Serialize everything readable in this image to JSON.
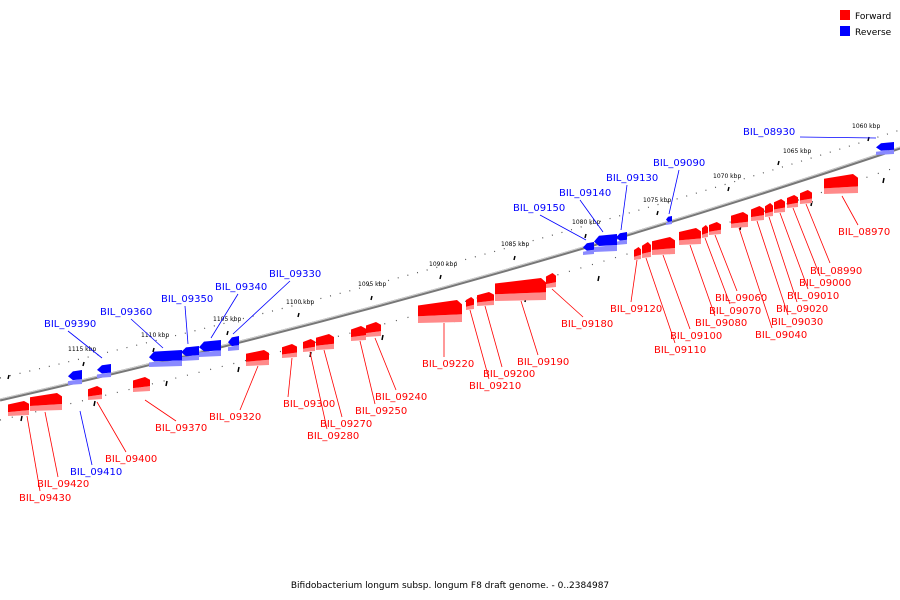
{
  "legend": {
    "forward_label": "Forward",
    "reverse_label": "Reverse",
    "forward_color": "#ff0000",
    "reverse_color": "#0000ff"
  },
  "caption": "Bifidobacterium longum subsp. longum F8 draft genome. - 0..2384987",
  "kbp_ticks": [
    "1060 kbp",
    "1065 kbp",
    "1070 kbp",
    "1075 kbp",
    "1080 kbp",
    "1085 kbp",
    "1090 kbp",
    "1095 kbp",
    "1100 kbp",
    "1105 kbp",
    "1110 kbp",
    "1115 kbp"
  ],
  "genes": [
    {
      "id": "BIL_08930",
      "strand": "reverse"
    },
    {
      "id": "BIL_08970",
      "strand": "forward"
    },
    {
      "id": "BIL_08990",
      "strand": "forward"
    },
    {
      "id": "BIL_09000",
      "strand": "forward"
    },
    {
      "id": "BIL_09010",
      "strand": "forward"
    },
    {
      "id": "BIL_09020",
      "strand": "forward"
    },
    {
      "id": "BIL_09030",
      "strand": "forward"
    },
    {
      "id": "BIL_09040",
      "strand": "forward"
    },
    {
      "id": "BIL_09060",
      "strand": "forward"
    },
    {
      "id": "BIL_09070",
      "strand": "forward"
    },
    {
      "id": "BIL_09080",
      "strand": "forward"
    },
    {
      "id": "BIL_09090",
      "strand": "reverse"
    },
    {
      "id": "BIL_09100",
      "strand": "forward"
    },
    {
      "id": "BIL_09110",
      "strand": "forward"
    },
    {
      "id": "BIL_09120",
      "strand": "forward"
    },
    {
      "id": "BIL_09130",
      "strand": "reverse"
    },
    {
      "id": "BIL_09140",
      "strand": "reverse"
    },
    {
      "id": "BIL_09150",
      "strand": "reverse"
    },
    {
      "id": "BIL_09180",
      "strand": "forward"
    },
    {
      "id": "BIL_09190",
      "strand": "forward"
    },
    {
      "id": "BIL_09200",
      "strand": "forward"
    },
    {
      "id": "BIL_09210",
      "strand": "forward"
    },
    {
      "id": "BIL_09220",
      "strand": "forward"
    },
    {
      "id": "BIL_09240",
      "strand": "forward"
    },
    {
      "id": "BIL_09250",
      "strand": "forward"
    },
    {
      "id": "BIL_09270",
      "strand": "forward"
    },
    {
      "id": "BIL_09280",
      "strand": "forward"
    },
    {
      "id": "BIL_09300",
      "strand": "forward"
    },
    {
      "id": "BIL_09320",
      "strand": "forward"
    },
    {
      "id": "BIL_09330",
      "strand": "reverse"
    },
    {
      "id": "BIL_09340",
      "strand": "reverse"
    },
    {
      "id": "BIL_09350",
      "strand": "reverse"
    },
    {
      "id": "BIL_09360",
      "strand": "reverse"
    },
    {
      "id": "BIL_09370",
      "strand": "forward"
    },
    {
      "id": "BIL_09390",
      "strand": "reverse"
    },
    {
      "id": "BIL_09400",
      "strand": "forward"
    },
    {
      "id": "BIL_09410",
      "strand": "reverse"
    },
    {
      "id": "BIL_09420",
      "strand": "forward"
    },
    {
      "id": "BIL_09430",
      "strand": "forward"
    }
  ]
}
